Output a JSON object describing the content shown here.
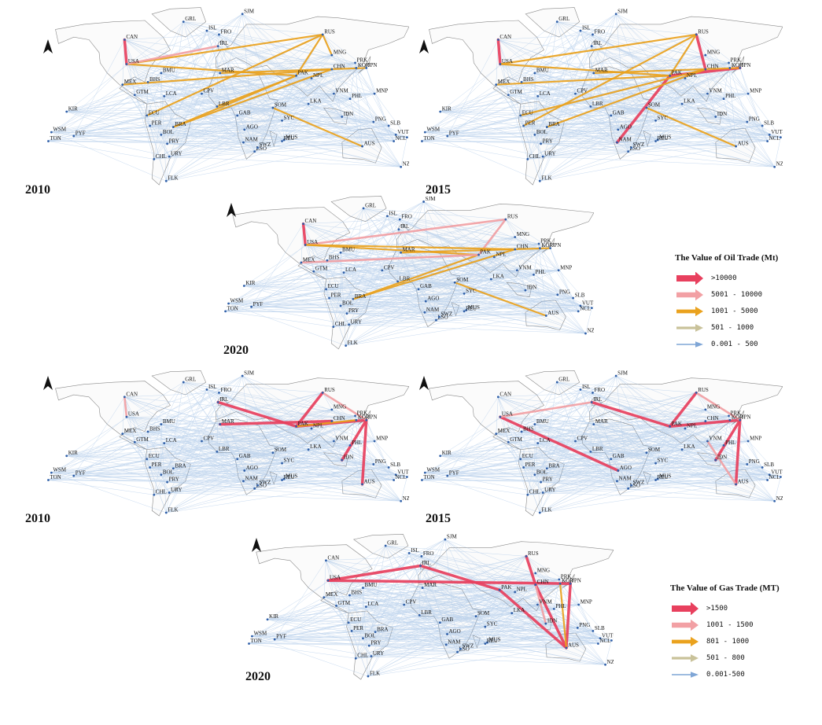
{
  "oil": {
    "panels": [
      {
        "year": "2010"
      },
      {
        "year": "2015"
      },
      {
        "year": "2020"
      }
    ],
    "legend": {
      "title": "The Value of Oil Trade (Mt)",
      "items": [
        {
          "label": ">10000",
          "color": "#e8405e",
          "size": 5
        },
        {
          "label": "5001 - 10000",
          "color": "#f2a0a4",
          "size": 4
        },
        {
          "label": "1001 - 5000",
          "color": "#eaa21e",
          "size": 3
        },
        {
          "label": "501 - 1000",
          "color": "#c9c29a",
          "size": 2
        },
        {
          "label": "0.001 - 500",
          "color": "#7fa6d6",
          "size": 1
        }
      ]
    }
  },
  "gas": {
    "panels": [
      {
        "year": "2010"
      },
      {
        "year": "2015"
      },
      {
        "year": "2020"
      }
    ],
    "legend": {
      "title": "The Value of Gas Trade (MT)",
      "items": [
        {
          "label": ">1500",
          "color": "#e8405e",
          "size": 5
        },
        {
          "label": "1001 - 1500",
          "color": "#f2a0a4",
          "size": 4
        },
        {
          "label": "801 - 1000",
          "color": "#eaa21e",
          "size": 3
        },
        {
          "label": "501 - 800",
          "color": "#c9c29a",
          "size": 2
        },
        {
          "label": "0.001-500",
          "color": "#7fa6d6",
          "size": 1
        }
      ]
    }
  },
  "countries": [
    {
      "code": "GRL",
      "lon": -42,
      "lat": 72
    },
    {
      "code": "SJM",
      "lon": 16,
      "lat": 78
    },
    {
      "code": "ISL",
      "lon": -19,
      "lat": 65
    },
    {
      "code": "FRO",
      "lon": -7,
      "lat": 62
    },
    {
      "code": "RUS",
      "lon": 95,
      "lat": 62
    },
    {
      "code": "CAN",
      "lon": -100,
      "lat": 58
    },
    {
      "code": "USA",
      "lon": -98,
      "lat": 39
    },
    {
      "code": "MEX",
      "lon": -102,
      "lat": 23
    },
    {
      "code": "BHS",
      "lon": -77,
      "lat": 25
    },
    {
      "code": "BMU",
      "lon": -64,
      "lat": 32
    },
    {
      "code": "LCA",
      "lon": -61,
      "lat": 14
    },
    {
      "code": "GTM",
      "lon": -90,
      "lat": 15
    },
    {
      "code": "ECU",
      "lon": -78,
      "lat": -1
    },
    {
      "code": "PER",
      "lon": -75,
      "lat": -9
    },
    {
      "code": "BRA",
      "lon": -52,
      "lat": -10
    },
    {
      "code": "BOL",
      "lon": -64,
      "lat": -16
    },
    {
      "code": "PRY",
      "lon": -58,
      "lat": -23
    },
    {
      "code": "URY",
      "lon": -56,
      "lat": -33
    },
    {
      "code": "CHL",
      "lon": -71,
      "lat": -35
    },
    {
      "code": "FLK",
      "lon": -59,
      "lat": -52
    },
    {
      "code": "CPV",
      "lon": -24,
      "lat": 16
    },
    {
      "code": "IRL",
      "lon": -8,
      "lat": 53
    },
    {
      "code": "MAR",
      "lon": -6,
      "lat": 32
    },
    {
      "code": "LBR",
      "lon": -9,
      "lat": 6
    },
    {
      "code": "GAB",
      "lon": 11,
      "lat": -1
    },
    {
      "code": "AGO",
      "lon": 18,
      "lat": -12
    },
    {
      "code": "NAM",
      "lon": 17,
      "lat": -22
    },
    {
      "code": "LSO",
      "lon": 28,
      "lat": -29
    },
    {
      "code": "SWZ",
      "lon": 31,
      "lat": -26
    },
    {
      "code": "MUS",
      "lon": 57,
      "lat": -20
    },
    {
      "code": "REU",
      "lon": 55,
      "lat": -21
    },
    {
      "code": "SYC",
      "lon": 55,
      "lat": -5
    },
    {
      "code": "SOM",
      "lon": 46,
      "lat": 5
    },
    {
      "code": "PAK",
      "lon": 69,
      "lat": 30
    },
    {
      "code": "NPL",
      "lon": 84,
      "lat": 28
    },
    {
      "code": "LKA",
      "lon": 81,
      "lat": 8
    },
    {
      "code": "MNG",
      "lon": 104,
      "lat": 46
    },
    {
      "code": "CHN",
      "lon": 104,
      "lat": 35
    },
    {
      "code": "PRK",
      "lon": 127,
      "lat": 40
    },
    {
      "code": "KOR",
      "lon": 128,
      "lat": 36
    },
    {
      "code": "JPN",
      "lon": 138,
      "lat": 36
    },
    {
      "code": "VNM",
      "lon": 106,
      "lat": 16
    },
    {
      "code": "PHL",
      "lon": 122,
      "lat": 12
    },
    {
      "code": "IDN",
      "lon": 114,
      "lat": -2
    },
    {
      "code": "MNP",
      "lon": 146,
      "lat": 16
    },
    {
      "code": "PNG",
      "lon": 145,
      "lat": -6
    },
    {
      "code": "SLB",
      "lon": 160,
      "lat": -9
    },
    {
      "code": "VUT",
      "lon": 167,
      "lat": -16
    },
    {
      "code": "NCL",
      "lon": 165,
      "lat": -21
    },
    {
      "code": "FJI",
      "lon": 178,
      "lat": -18
    },
    {
      "code": "AUS",
      "lon": 134,
      "lat": -25
    },
    {
      "code": "NZL",
      "lon": 172,
      "lat": -41
    },
    {
      "code": "KIR",
      "lon": -157,
      "lat": 2
    },
    {
      "code": "WSM",
      "lon": -172,
      "lat": -14
    },
    {
      "code": "TON",
      "lon": -175,
      "lat": -21
    },
    {
      "code": "PYF",
      "lon": -150,
      "lat": -17
    }
  ],
  "flows": {
    "oil-2010": [
      [
        "CAN",
        "USA",
        1
      ],
      [
        "RUS",
        "PAK",
        2
      ],
      [
        "USA",
        "RUS",
        2
      ],
      [
        "USA",
        "PAK",
        2
      ],
      [
        "MEX",
        "CHN",
        2
      ],
      [
        "BRA",
        "CHN",
        2
      ],
      [
        "SOM",
        "AUS",
        2
      ],
      [
        "BRA",
        "PAK",
        2
      ],
      [
        "ECU",
        "RUS",
        2
      ],
      [
        "USA",
        "IRL",
        3
      ],
      [
        "RUS",
        "MNG",
        2
      ],
      [
        "MAR",
        "JPN",
        2
      ],
      [
        "LBR",
        "PAK",
        2
      ]
    ],
    "oil-2015": [
      [
        "CAN",
        "USA",
        1
      ],
      [
        "RUS",
        "CHN",
        1
      ],
      [
        "PAK",
        "JPN",
        1
      ],
      [
        "PAK",
        "NAM",
        1
      ],
      [
        "USA",
        "RUS",
        2
      ],
      [
        "USA",
        "PAK",
        2
      ],
      [
        "RUS",
        "PAK",
        2
      ],
      [
        "BRA",
        "CHN",
        2
      ],
      [
        "MEX",
        "PAK",
        2
      ],
      [
        "PER",
        "RUS",
        2
      ],
      [
        "MAR",
        "JPN",
        2
      ],
      [
        "ECU",
        "CHN",
        2
      ],
      [
        "SOM",
        "AUS",
        2
      ]
    ],
    "oil-2020": [
      [
        "CAN",
        "USA",
        1
      ],
      [
        "USA",
        "RUS",
        3
      ],
      [
        "USA",
        "PAK",
        2
      ],
      [
        "RUS",
        "PAK",
        3
      ],
      [
        "USA",
        "CHN",
        2
      ],
      [
        "BRA",
        "PAK",
        2
      ],
      [
        "BRA",
        "CHN",
        2
      ],
      [
        "MAR",
        "JPN",
        2
      ],
      [
        "SOM",
        "AUS",
        2
      ],
      [
        "MEX",
        "PAK",
        3
      ]
    ],
    "gas-2010": [
      [
        "RUS",
        "PAK",
        1
      ],
      [
        "IRL",
        "PAK",
        1
      ],
      [
        "PAK",
        "JPN",
        1
      ],
      [
        "IDN",
        "JPN",
        1
      ],
      [
        "AUS",
        "JPN",
        1
      ],
      [
        "MAR",
        "CHN",
        1
      ],
      [
        "RUS",
        "JPN",
        3
      ],
      [
        "CAN",
        "USA",
        3
      ],
      [
        "PAK",
        "KOR",
        2
      ]
    ],
    "gas-2015": [
      [
        "RUS",
        "PAK",
        1
      ],
      [
        "IRL",
        "PAK",
        1
      ],
      [
        "PAK",
        "JPN",
        1
      ],
      [
        "AUS",
        "JPN",
        1
      ],
      [
        "IDN",
        "JPN",
        1
      ],
      [
        "USA",
        "AGO",
        1
      ],
      [
        "USA",
        "IRL",
        3
      ],
      [
        "RUS",
        "JPN",
        3
      ],
      [
        "VNM",
        "AUS",
        3
      ]
    ],
    "gas-2020": [
      [
        "USA",
        "JPN",
        1
      ],
      [
        "RUS",
        "CHN",
        1
      ],
      [
        "AUS",
        "JPN",
        1
      ],
      [
        "AUS",
        "CHN",
        1
      ],
      [
        "PAK",
        "AUS",
        1
      ],
      [
        "IRL",
        "PAK",
        1
      ],
      [
        "USA",
        "IRL",
        1
      ],
      [
        "AUS",
        "KOR",
        2
      ],
      [
        "IDN",
        "CHN",
        3
      ]
    ]
  }
}
